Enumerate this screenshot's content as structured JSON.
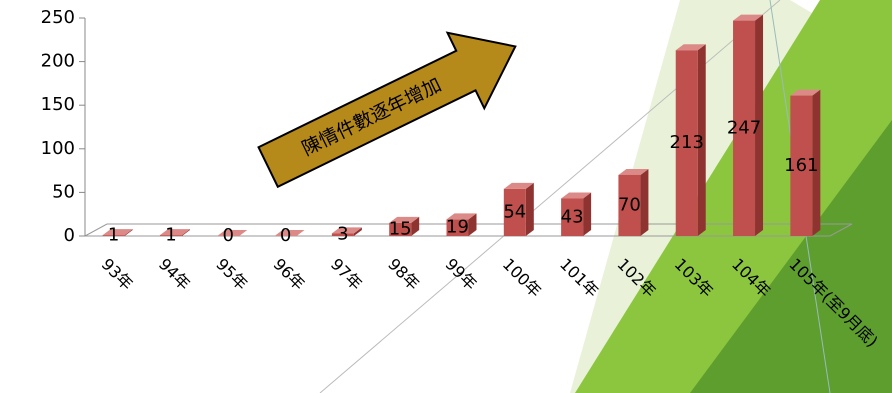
{
  "chart_data": {
    "type": "bar3d",
    "annotation": "陳情件數逐年增加",
    "categories": [
      "93年",
      "94年",
      "95年",
      "96年",
      "97年",
      "98年",
      "99年",
      "100年",
      "101年",
      "102年",
      "103年",
      "104年",
      "105年(至9月底)"
    ],
    "values": [
      1,
      1,
      0,
      0,
      3,
      15,
      19,
      54,
      43,
      70,
      213,
      247,
      161
    ],
    "color": "#c0504d",
    "ylim": [
      0,
      250
    ],
    "yticks": [
      0,
      50,
      100,
      150,
      200,
      250
    ]
  }
}
